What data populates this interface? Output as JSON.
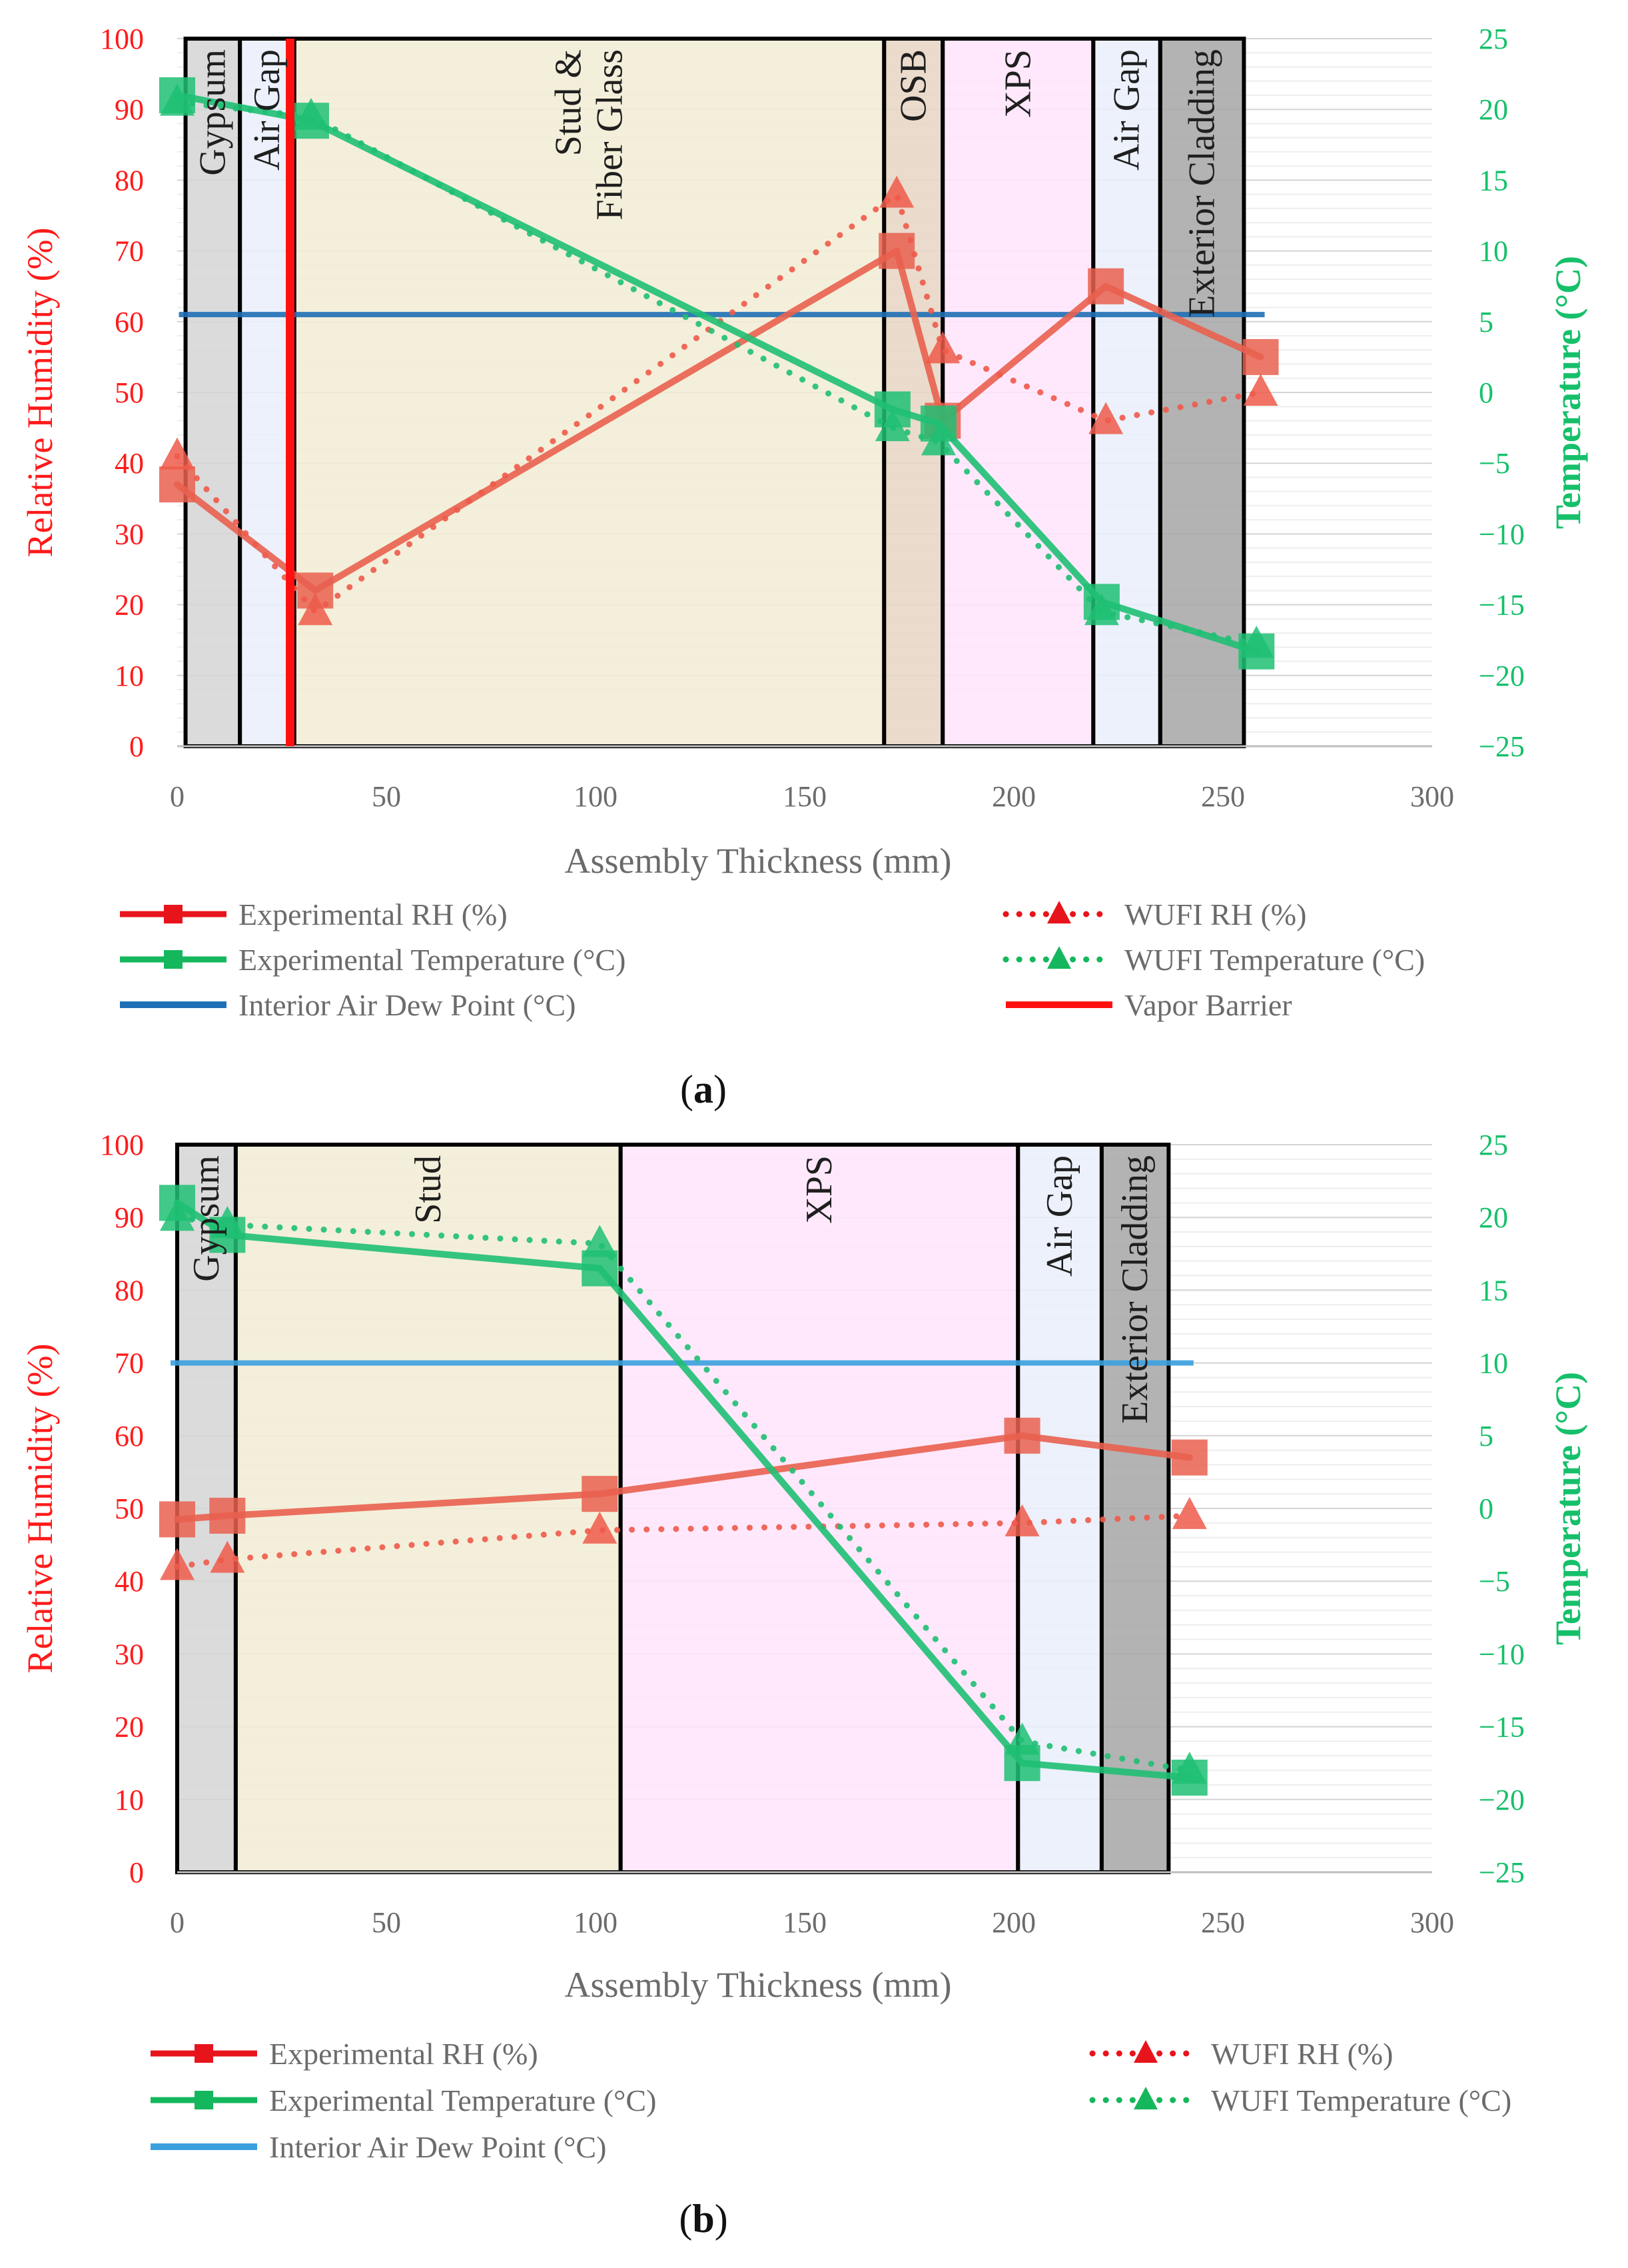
{
  "chart_data": [
    {
      "id": "a",
      "type": "line",
      "panel_label": "(a)",
      "panel_letter": "a",
      "xlabel": "Assembly Thickness (mm)",
      "ylabel": "Relative Humidity (%)",
      "y2label": "Temperature (°C)",
      "xlim": [
        0,
        300
      ],
      "ylim": [
        0,
        100
      ],
      "y2lim": [
        -25,
        25
      ],
      "x_ticks": [
        "0",
        "50",
        "100",
        "150",
        "200",
        "250",
        "300"
      ],
      "y_ticks": [
        "0",
        "10",
        "20",
        "30",
        "40",
        "50",
        "60",
        "70",
        "80",
        "90",
        "100"
      ],
      "y2_ticks": [
        "−25",
        "−20",
        "−15",
        "−10",
        "−5",
        "0",
        "5",
        "10",
        "15",
        "20",
        "25"
      ],
      "layers": [
        {
          "name": "Gypsum",
          "label": "Gypsum",
          "x0": 2,
          "x1": 15,
          "color": "#d5d5d5"
        },
        {
          "name": "Air Gap",
          "label": "Air Gap",
          "x0": 15,
          "x1": 28,
          "color": "#e9eefa"
        },
        {
          "name": "Stud & Fiber Glass",
          "label": "Stud &\nFiber Glass",
          "x0": 28,
          "x1": 169,
          "color": "#f2ecd3"
        },
        {
          "name": "OSB",
          "label": "OSB",
          "x0": 169,
          "x1": 183,
          "color": "#e8d5c3"
        },
        {
          "name": "XPS",
          "label": "XPS",
          "x0": 183,
          "x1": 219,
          "color": "#ffe4fc"
        },
        {
          "name": "Air Gap 2",
          "label": "Air Gap",
          "x0": 219,
          "x1": 235,
          "color": "#e9eefa"
        },
        {
          "name": "Exterior Cladding",
          "label": "Exterior Cladding",
          "x0": 235,
          "x1": 255,
          "color": "#a6a6a6"
        }
      ],
      "vapor_barrier_x": 27,
      "dew_point_c": 5.5,
      "series": [
        {
          "name": "Experimental RH (%)",
          "axis": "left",
          "style": "solid",
          "marker": "square",
          "color": "#e9604f",
          "x": [
            0,
            33,
            172,
            183,
            222,
            259
          ],
          "y": [
            37,
            22,
            70,
            46,
            65,
            55
          ]
        },
        {
          "name": "WUFI RH (%)",
          "axis": "left",
          "style": "dotted",
          "marker": "triangle",
          "color": "#ee5a4a",
          "x": [
            0,
            33,
            172,
            183,
            222,
            259
          ],
          "y": [
            41,
            19,
            78,
            56,
            46,
            50
          ]
        },
        {
          "name": "Experimental Temperature (°C)",
          "axis": "right",
          "style": "solid",
          "marker": "square",
          "color": "#1fbf73",
          "x": [
            0,
            32,
            171,
            182,
            221,
            258
          ],
          "y": [
            21,
            19.2,
            -1.2,
            -2.2,
            -14.8,
            -18.3
          ]
        },
        {
          "name": "WUFI Temperature (°C)",
          "axis": "right",
          "style": "dotted",
          "marker": "triangle",
          "color": "#1fbf73",
          "x": [
            0,
            32,
            171,
            182,
            221,
            258
          ],
          "y": [
            20.5,
            19.5,
            -2.5,
            -3.5,
            -15.5,
            -17.8
          ]
        }
      ],
      "legend": [
        {
          "label": "Experimental RH (%)",
          "kind": "line-square",
          "color": "#e8141c"
        },
        {
          "label": "WUFI RH (%)",
          "kind": "dot-triangle",
          "color": "#e8141c"
        },
        {
          "label": "Experimental Temperature (°C)",
          "kind": "line-square",
          "color": "#15b75d"
        },
        {
          "label": "WUFI Temperature (°C)",
          "kind": "dot-triangle",
          "color": "#15b75d"
        },
        {
          "label": "Interior Air Dew Point (°C)",
          "kind": "line",
          "color": "#1f6fb5"
        },
        {
          "label": "Vapor Barrier",
          "kind": "line",
          "color": "#ff1010"
        }
      ]
    },
    {
      "id": "b",
      "type": "line",
      "panel_label": "(b)",
      "panel_letter": "b",
      "xlabel": "Assembly Thickness (mm)",
      "ylabel": "Relative Humidity (%)",
      "y2label": "Temperature (°C)",
      "xlim": [
        0,
        300
      ],
      "ylim": [
        0,
        100
      ],
      "y2lim": [
        -25,
        25
      ],
      "x_ticks": [
        "0",
        "50",
        "100",
        "150",
        "200",
        "250",
        "300"
      ],
      "y_ticks": [
        "0",
        "10",
        "20",
        "30",
        "40",
        "50",
        "60",
        "70",
        "80",
        "90",
        "100"
      ],
      "y2_ticks": [
        "−25",
        "−20",
        "−15",
        "−10",
        "−5",
        "0",
        "5",
        "10",
        "15",
        "20",
        "25"
      ],
      "layers": [
        {
          "name": "Gypsum",
          "label": "Gypsum",
          "x0": 0,
          "x1": 14,
          "color": "#d5d5d5"
        },
        {
          "name": "Stud",
          "label": "Stud",
          "x0": 14,
          "x1": 106,
          "color": "#f2ecd3"
        },
        {
          "name": "XPS",
          "label": "XPS",
          "x0": 106,
          "x1": 201,
          "color": "#ffe4fc"
        },
        {
          "name": "Air Gap",
          "label": "Air Gap",
          "x0": 201,
          "x1": 221,
          "color": "#e9eefa"
        },
        {
          "name": "Exterior Cladding",
          "label": "Exterior Cladding",
          "x0": 221,
          "x1": 237,
          "color": "#a6a6a6"
        }
      ],
      "dew_point_c": 10,
      "series": [
        {
          "name": "Experimental RH (%)",
          "axis": "left",
          "style": "solid",
          "marker": "square",
          "color": "#e9604f",
          "x": [
            0,
            12,
            101,
            202,
            242
          ],
          "y": [
            48.5,
            49,
            52,
            60,
            57
          ]
        },
        {
          "name": "WUFI RH (%)",
          "axis": "left",
          "style": "dotted",
          "marker": "triangle",
          "color": "#ee5a4a",
          "x": [
            0,
            12,
            101,
            202,
            242
          ],
          "y": [
            42,
            43,
            47,
            48,
            49
          ]
        },
        {
          "name": "Experimental Temperature (°C)",
          "axis": "right",
          "style": "solid",
          "marker": "square",
          "color": "#1fbf73",
          "x": [
            0,
            12,
            101,
            202,
            242
          ],
          "y": [
            21,
            18.8,
            16.5,
            -17.5,
            -18.5
          ]
        },
        {
          "name": "WUFI Temperature (°C)",
          "axis": "right",
          "style": "dotted",
          "marker": "triangle",
          "color": "#1fbf73",
          "x": [
            0,
            12,
            101,
            202,
            242
          ],
          "y": [
            20,
            19.5,
            18.2,
            -16,
            -18
          ]
        }
      ],
      "legend": [
        {
          "label": "Experimental RH (%)",
          "kind": "line-square",
          "color": "#e8141c"
        },
        {
          "label": "WUFI RH (%)",
          "kind": "dot-triangle",
          "color": "#e8141c"
        },
        {
          "label": "Experimental Temperature (°C)",
          "kind": "line-square",
          "color": "#15b75d"
        },
        {
          "label": "WUFI Temperature (°C)",
          "kind": "dot-triangle",
          "color": "#15b75d"
        },
        {
          "label": "Interior Air Dew Point (°C)",
          "kind": "line",
          "color": "#3aa0de"
        }
      ]
    }
  ]
}
